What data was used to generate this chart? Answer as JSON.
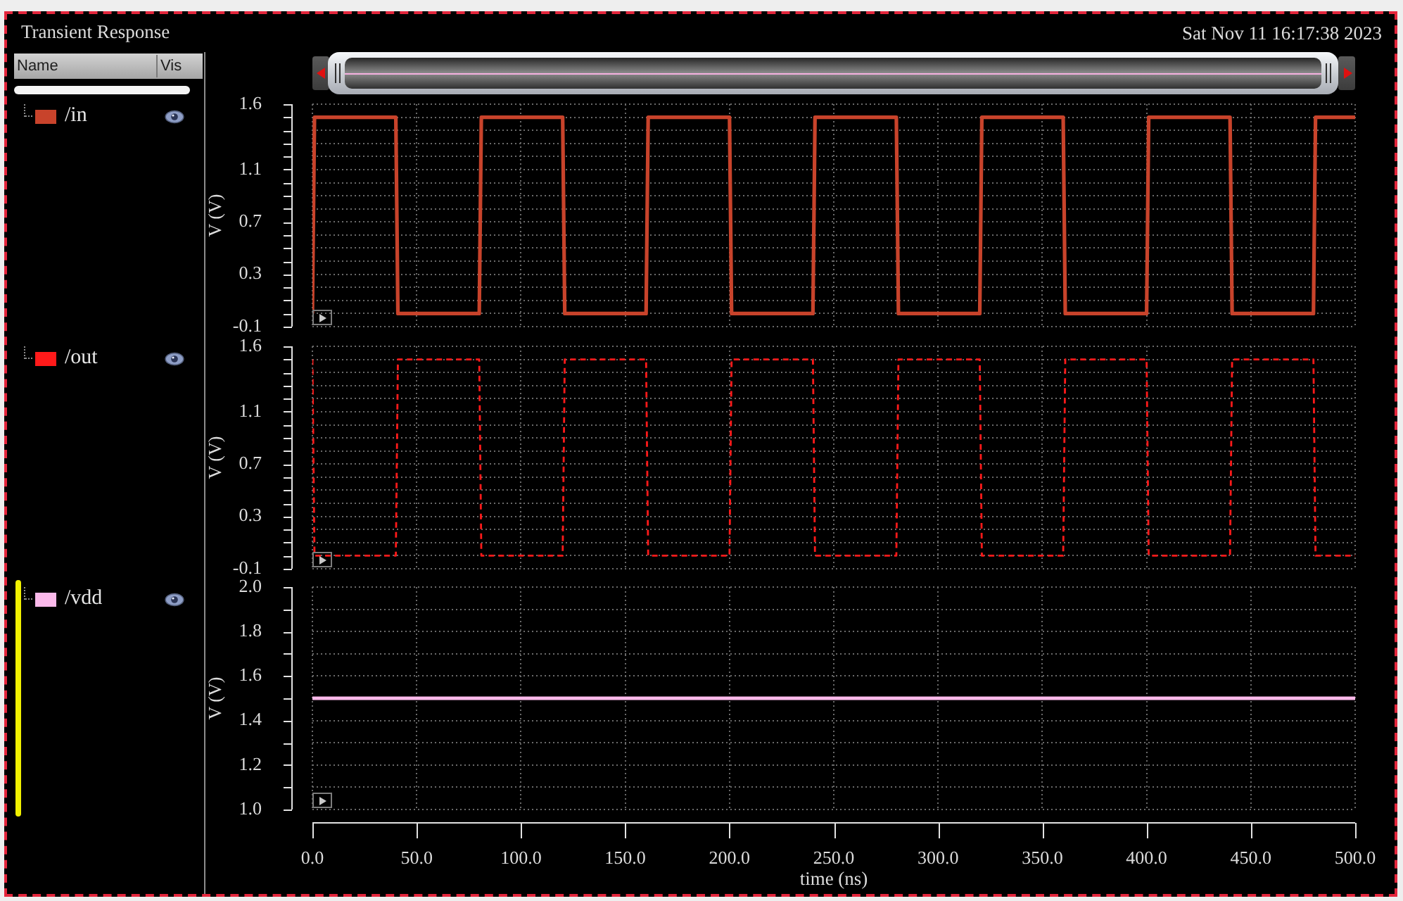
{
  "chart_data": [
    {
      "type": "line",
      "title": "Transient Response",
      "legend_title": "Name",
      "annotations": [
        "Sat Nov 11 16:17:38 2023",
        "Vis"
      ],
      "ylabel": "V (V)",
      "xlim": [
        0,
        500
      ],
      "xticks": [
        0,
        50,
        100,
        150,
        200,
        250,
        300,
        350,
        400,
        450,
        500
      ],
      "ylim": [
        -0.1,
        1.6
      ],
      "yticks": [
        -0.1,
        {
          "value": 0,
          "label": null
        },
        {
          "value": 0.1,
          "label": null
        },
        {
          "value": 0.2,
          "label": null
        },
        0.3,
        {
          "value": 0.4,
          "label": null
        },
        {
          "value": 0.5,
          "label": null
        },
        {
          "value": 0.6,
          "label": null
        },
        0.7,
        {
          "value": 0.8,
          "label": null
        },
        {
          "value": 0.9,
          "label": null
        },
        {
          "value": 1,
          "label": null
        },
        1.1,
        {
          "value": 1.2,
          "label": null
        },
        {
          "value": 1.3,
          "label": null
        },
        {
          "value": 1.4,
          "label": null
        },
        {
          "value": 1.5,
          "label": null
        },
        1.6
      ],
      "tick_labels": "y",
      "grid": true,
      "legend": "left",
      "line_style": "solid",
      "series": [
        {
          "name": "/in",
          "color": "#c8432b",
          "x": [
            0,
            1,
            40,
            41,
            80,
            81,
            120,
            121,
            160,
            161,
            200,
            201,
            240,
            241,
            280,
            281,
            320,
            321,
            360,
            361,
            400,
            401,
            440,
            441,
            480,
            481,
            500
          ],
          "values": [
            0,
            1.5,
            1.5,
            0,
            0,
            1.5,
            1.5,
            0,
            0,
            1.5,
            1.5,
            0,
            0,
            1.5,
            1.5,
            0,
            0,
            1.5,
            1.5,
            0,
            0,
            1.5,
            1.5,
            0,
            0,
            1.5,
            1.5
          ]
        }
      ]
    },
    {
      "type": "line",
      "ylabel": "V (V)",
      "xlim": [
        0,
        500
      ],
      "xticks": [
        0,
        50,
        100,
        150,
        200,
        250,
        300,
        350,
        400,
        450,
        500
      ],
      "ylim": [
        -0.1,
        1.6
      ],
      "yticks": [
        -0.1,
        {
          "value": 0,
          "label": null
        },
        {
          "value": 0.1,
          "label": null
        },
        {
          "value": 0.2,
          "label": null
        },
        0.3,
        {
          "value": 0.4,
          "label": null
        },
        {
          "value": 0.5,
          "label": null
        },
        {
          "value": 0.6,
          "label": null
        },
        0.7,
        {
          "value": 0.8,
          "label": null
        },
        {
          "value": 0.9,
          "label": null
        },
        {
          "value": 1,
          "label": null
        },
        1.1,
        {
          "value": 1.2,
          "label": null
        },
        {
          "value": 1.3,
          "label": null
        },
        {
          "value": 1.4,
          "label": null
        },
        {
          "value": 1.5,
          "label": null
        },
        1.6
      ],
      "tick_labels": "y",
      "grid": true,
      "legend": "left",
      "line_style": "dashed",
      "series": [
        {
          "name": "/out",
          "color": "#ff1a1a",
          "x": [
            0,
            1,
            40,
            41,
            80,
            81,
            120,
            121,
            160,
            161,
            200,
            201,
            240,
            241,
            280,
            281,
            320,
            321,
            360,
            361,
            400,
            401,
            440,
            441,
            480,
            481,
            500
          ],
          "values": [
            1.5,
            0,
            0,
            1.5,
            1.5,
            0,
            0,
            1.5,
            1.5,
            0,
            0,
            1.5,
            1.5,
            0,
            0,
            1.5,
            1.5,
            0,
            0,
            1.5,
            1.5,
            0,
            0,
            1.5,
            1.5,
            0,
            0
          ]
        }
      ]
    },
    {
      "type": "line",
      "ylabel": "V (V)",
      "xlabel": "time (ns)",
      "xlim": [
        0,
        500
      ],
      "xticks": [
        {
          "value": 0,
          "label": "0.0"
        },
        {
          "value": 50,
          "label": "50.0"
        },
        {
          "value": 100,
          "label": "100.0"
        },
        {
          "value": 150,
          "label": "150.0"
        },
        {
          "value": 200,
          "label": "200.0"
        },
        {
          "value": 250,
          "label": "250.0"
        },
        {
          "value": 300,
          "label": "300.0"
        },
        {
          "value": 350,
          "label": "350.0"
        },
        {
          "value": 400,
          "label": "400.0"
        },
        {
          "value": 450,
          "label": "450.0"
        },
        {
          "value": 500,
          "label": "500.0"
        }
      ],
      "ylim": [
        1,
        2
      ],
      "yticks": [
        {
          "value": 1,
          "label": "1.0"
        },
        {
          "value": 1.1,
          "label": null
        },
        1.2,
        {
          "value": 1.3,
          "label": null
        },
        1.4,
        {
          "value": 1.5,
          "label": null
        },
        1.6,
        {
          "value": 1.7,
          "label": null
        },
        1.8,
        {
          "value": 1.9,
          "label": null
        },
        {
          "value": 2,
          "label": "2.0"
        }
      ],
      "grid": true,
      "legend": "left",
      "line_style": "solid",
      "series": [
        {
          "name": "/vdd",
          "color": "#fbb9ea",
          "x": [
            0,
            500
          ],
          "values": [
            1.5,
            1.5
          ]
        }
      ]
    }
  ]
}
